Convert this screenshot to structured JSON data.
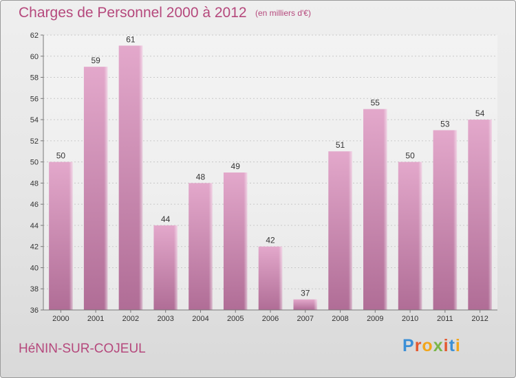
{
  "chart_data": {
    "type": "bar",
    "title": "Charges de Personnel 2000 à 2012",
    "subtitle": "(en milliers d'€)",
    "categories": [
      "2000",
      "2001",
      "2002",
      "2003",
      "2004",
      "2005",
      "2006",
      "2007",
      "2008",
      "2009",
      "2010",
      "2011",
      "2012"
    ],
    "values": [
      50,
      59,
      61,
      44,
      48,
      49,
      42,
      37,
      51,
      55,
      50,
      53,
      54
    ],
    "ylim": [
      36,
      62
    ],
    "yticks": [
      36,
      38,
      40,
      42,
      44,
      46,
      48,
      50,
      52,
      54,
      56,
      58,
      60,
      62
    ],
    "grid": true,
    "bar_color": "#c97aa6"
  },
  "footer": {
    "town": "HéNIN-SUR-COJEUL",
    "logo_letters": [
      "P",
      "r",
      "o",
      "x",
      "i",
      "t",
      "i"
    ],
    "logo_colors": [
      "#3b8fd6",
      "#e4572e",
      "#f2a51a",
      "#7ab648",
      "#e4572e",
      "#3b8fd6",
      "#f2a51a"
    ]
  }
}
